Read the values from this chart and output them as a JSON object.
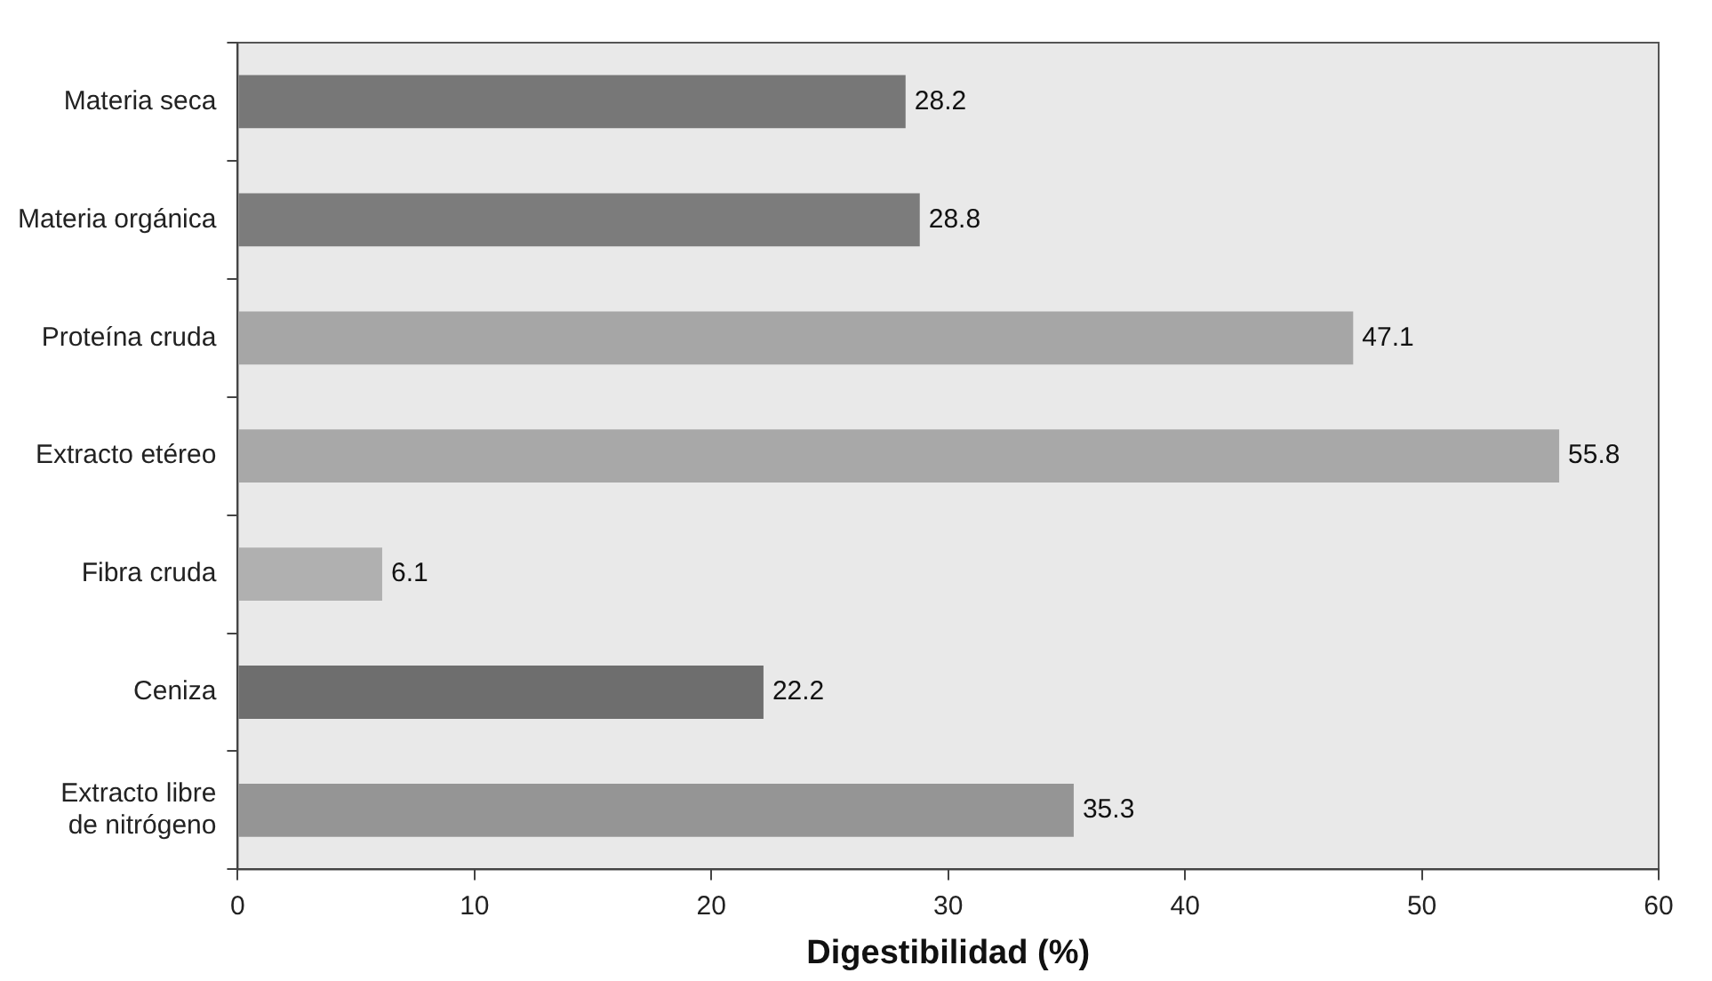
{
  "chart_data": {
    "type": "bar",
    "orientation": "horizontal",
    "xlabel": "Digestibilidad (%)",
    "categories": [
      "Materia seca",
      "Materia orgánica",
      "Proteína cruda",
      "Extracto etéreo",
      "Fibra cruda",
      "Ceniza",
      "Extracto libre de nitrógeno"
    ],
    "values": [
      28.2,
      28.8,
      47.1,
      55.8,
      6.1,
      22.2,
      35.3
    ],
    "colors": [
      "#777777",
      "#7c7c7c",
      "#a6a6a6",
      "#a8a8a8",
      "#b0b0b0",
      "#6e6e6e",
      "#959595"
    ],
    "xlim": [
      0,
      60
    ],
    "xticks": [
      0,
      10,
      20,
      30,
      40,
      50,
      60
    ],
    "grid": false,
    "legend": false,
    "data_labels": true
  }
}
